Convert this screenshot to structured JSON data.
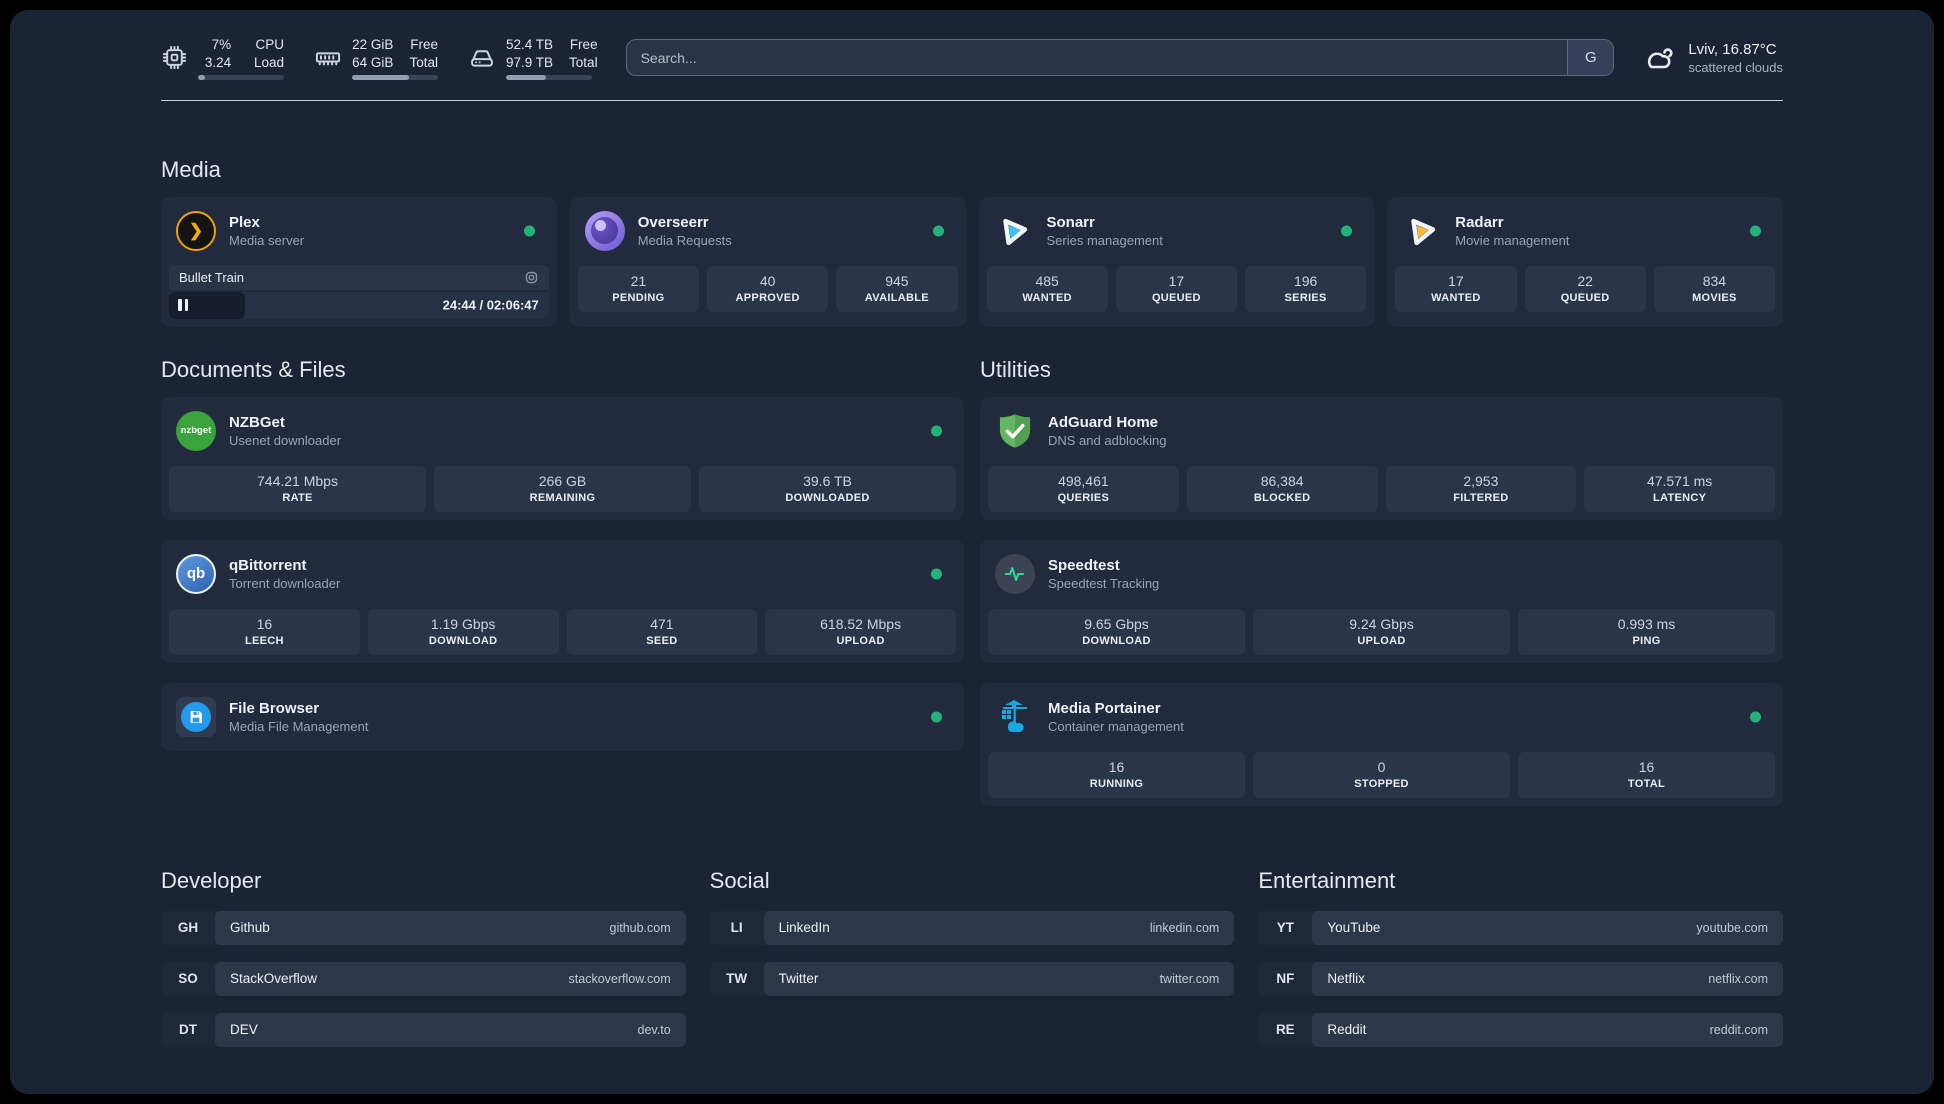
{
  "theme": {
    "status_green": "#25b279",
    "accent_plex": "#eba50c",
    "accent_sonarr": "#3cc5f4",
    "accent_radarr": "#ffb53a",
    "accent_portainer": "#1aa8e0"
  },
  "header": {
    "resources": [
      {
        "icon": "cpu-icon",
        "row1_value": "7%",
        "row1_label": "CPU",
        "row2_value": "3.24",
        "row2_label": "Load",
        "progress_pct": 8
      },
      {
        "icon": "memory-icon",
        "row1_value": "22 GiB",
        "row1_label": "Free",
        "row2_value": "64 GiB",
        "row2_label": "Total",
        "progress_pct": 66
      },
      {
        "icon": "disk-icon",
        "row1_value": "52.4 TB",
        "row1_label": "Free",
        "row2_value": "97.9 TB",
        "row2_label": "Total",
        "progress_pct": 46
      }
    ],
    "search": {
      "placeholder": "Search...",
      "provider_label": "G"
    },
    "weather": {
      "icon": "scattered-clouds-icon",
      "location_temp": "Lviv, 16.87°C",
      "condition": "scattered clouds"
    }
  },
  "media": {
    "title": "Media",
    "plex": {
      "name": "Plex",
      "desc": "Media server",
      "status": "online",
      "now_playing": {
        "title": "Bullet Train",
        "time": "24:44 / 02:06:47",
        "progress_pct": 20
      }
    },
    "overseerr": {
      "name": "Overseerr",
      "desc": "Media Requests",
      "status": "online",
      "stats": [
        {
          "value": "21",
          "label": "PENDING"
        },
        {
          "value": "40",
          "label": "APPROVED"
        },
        {
          "value": "945",
          "label": "AVAILABLE"
        }
      ]
    },
    "sonarr": {
      "name": "Sonarr",
      "desc": "Series management",
      "status": "online",
      "stats": [
        {
          "value": "485",
          "label": "WANTED"
        },
        {
          "value": "17",
          "label": "QUEUED"
        },
        {
          "value": "196",
          "label": "SERIES"
        }
      ]
    },
    "radarr": {
      "name": "Radarr",
      "desc": "Movie management",
      "status": "online",
      "stats": [
        {
          "value": "17",
          "label": "WANTED"
        },
        {
          "value": "22",
          "label": "QUEUED"
        },
        {
          "value": "834",
          "label": "MOVIES"
        }
      ]
    }
  },
  "documents": {
    "title": "Documents & Files",
    "nzbget": {
      "name": "NZBGet",
      "desc": "Usenet downloader",
      "status": "online",
      "logo_text": "nzbget",
      "stats": [
        {
          "value": "744.21 Mbps",
          "label": "RATE"
        },
        {
          "value": "266 GB",
          "label": "REMAINING"
        },
        {
          "value": "39.6 TB",
          "label": "DOWNLOADED"
        }
      ]
    },
    "qbittorrent": {
      "name": "qBittorrent",
      "desc": "Torrent downloader",
      "status": "online",
      "logo_text": "qb",
      "stats": [
        {
          "value": "16",
          "label": "LEECH"
        },
        {
          "value": "1.19 Gbps",
          "label": "DOWNLOAD"
        },
        {
          "value": "471",
          "label": "SEED"
        },
        {
          "value": "618.52 Mbps",
          "label": "UPLOAD"
        }
      ]
    },
    "filebrowser": {
      "name": "File Browser",
      "desc": "Media File Management",
      "status": "online"
    }
  },
  "utilities": {
    "title": "Utilities",
    "adguard": {
      "name": "AdGuard Home",
      "desc": "DNS and adblocking",
      "stats": [
        {
          "value": "498,461",
          "label": "QUERIES"
        },
        {
          "value": "86,384",
          "label": "BLOCKED"
        },
        {
          "value": "2,953",
          "label": "FILTERED"
        },
        {
          "value": "47.571 ms",
          "label": "LATENCY"
        }
      ]
    },
    "speedtest": {
      "name": "Speedtest",
      "desc": "Speedtest Tracking",
      "stats": [
        {
          "value": "9.65 Gbps",
          "label": "DOWNLOAD"
        },
        {
          "value": "9.24 Gbps",
          "label": "UPLOAD"
        },
        {
          "value": "0.993 ms",
          "label": "PING"
        }
      ]
    },
    "portainer": {
      "name": "Media Portainer",
      "desc": "Container management",
      "status": "online",
      "stats": [
        {
          "value": "16",
          "label": "RUNNING"
        },
        {
          "value": "0",
          "label": "STOPPED"
        },
        {
          "value": "16",
          "label": "TOTAL"
        }
      ]
    }
  },
  "bookmarks": [
    {
      "title": "Developer",
      "items": [
        {
          "abbr": "GH",
          "name": "Github",
          "url": "github.com"
        },
        {
          "abbr": "SO",
          "name": "StackOverflow",
          "url": "stackoverflow.com"
        },
        {
          "abbr": "DT",
          "name": "DEV",
          "url": "dev.to"
        }
      ]
    },
    {
      "title": "Social",
      "items": [
        {
          "abbr": "LI",
          "name": "LinkedIn",
          "url": "linkedin.com"
        },
        {
          "abbr": "TW",
          "name": "Twitter",
          "url": "twitter.com"
        }
      ]
    },
    {
      "title": "Entertainment",
      "items": [
        {
          "abbr": "YT",
          "name": "YouTube",
          "url": "youtube.com"
        },
        {
          "abbr": "NF",
          "name": "Netflix",
          "url": "netflix.com"
        },
        {
          "abbr": "RE",
          "name": "Reddit",
          "url": "reddit.com"
        }
      ]
    }
  ]
}
